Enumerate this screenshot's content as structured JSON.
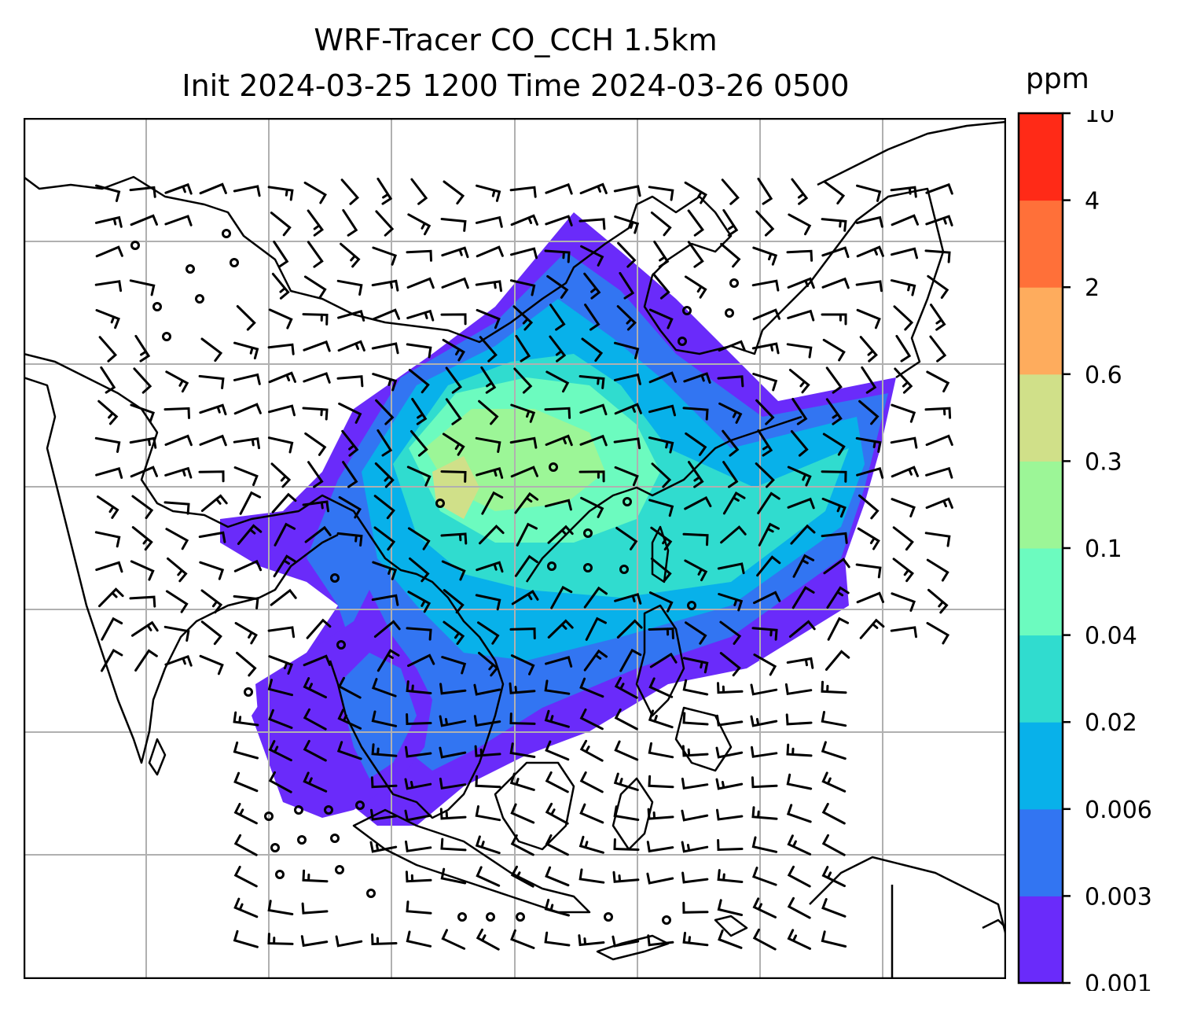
{
  "title": {
    "line1": "WRF-Tracer CO_CCH 1.5km",
    "line2": "Init 2024-03-25 1200 Time 2024-03-26 0500"
  },
  "colorbar": {
    "unit": "ppm",
    "levels": [
      "0.001",
      "0.003",
      "0.006",
      "0.02",
      "0.04",
      "0.1",
      "0.3",
      "0.6",
      "2",
      "4",
      "10"
    ],
    "colors": [
      "#6a2bfa",
      "#3275f2",
      "#08b1ea",
      "#30dccf",
      "#6cfbbf",
      "#9cf697",
      "#d0e089",
      "#feac5d",
      "#ff7039",
      "#ff2a17"
    ]
  },
  "map": {
    "grid": "on",
    "coastline_color": "#000000",
    "gridline_color": "#b0b0b0",
    "barb_color": "#000000"
  }
}
